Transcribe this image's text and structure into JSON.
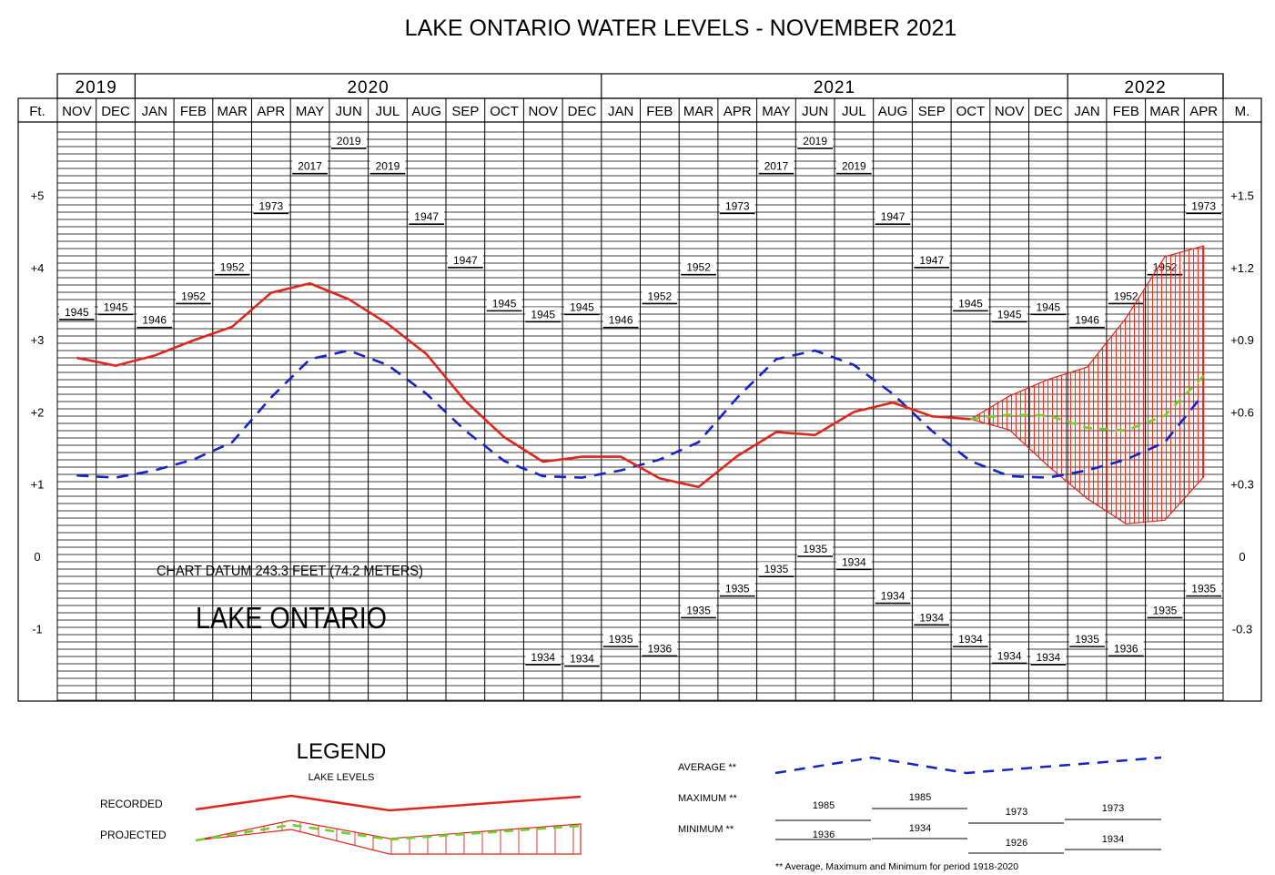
{
  "title": "LAKE ONTARIO WATER LEVELS - NOVEMBER 2021",
  "header": {
    "years": [
      {
        "label": "2019",
        "from": 0,
        "to": 2
      },
      {
        "label": "2020",
        "from": 2,
        "to": 14
      },
      {
        "label": "2021",
        "from": 14,
        "to": 26
      },
      {
        "label": "2022",
        "from": 26,
        "to": 30
      }
    ],
    "left_unit": "Ft.",
    "right_unit": "M."
  },
  "chart_data": {
    "type": "line",
    "title": "LAKE ONTARIO WATER LEVELS - NOVEMBER 2021",
    "categories": [
      "NOV",
      "DEC",
      "JAN",
      "FEB",
      "MAR",
      "APR",
      "MAY",
      "JUN",
      "JUL",
      "AUG",
      "SEP",
      "OCT",
      "NOV",
      "DEC",
      "JAN",
      "FEB",
      "MAR",
      "APR",
      "MAY",
      "JUN",
      "JUL",
      "AUG",
      "SEP",
      "OCT",
      "NOV",
      "DEC",
      "JAN",
      "FEB",
      "MAR",
      "APR"
    ],
    "ylim": [
      -2.0,
      6.0
    ],
    "left_ticks": [
      {
        "value": 5,
        "label": "+5"
      },
      {
        "value": 4,
        "label": "+4"
      },
      {
        "value": 3,
        "label": "+3"
      },
      {
        "value": 2,
        "label": "+2"
      },
      {
        "value": 1,
        "label": "+1"
      },
      {
        "value": 0,
        "label": "0"
      },
      {
        "value": -1,
        "label": "-1"
      }
    ],
    "right_ticks": [
      {
        "value": 5,
        "label": "+1.5"
      },
      {
        "value": 4,
        "label": "+1.2"
      },
      {
        "value": 3,
        "label": "+0.9"
      },
      {
        "value": 2,
        "label": "+0.6"
      },
      {
        "value": 1,
        "label": "+0.3"
      },
      {
        "value": 0,
        "label": "0"
      },
      {
        "value": -1,
        "label": "-0.3"
      }
    ],
    "grid": true,
    "series": [
      {
        "name": "RECORDED",
        "style": "solid",
        "color": "#e0261b",
        "points": [
          [
            0,
            2.75
          ],
          [
            1,
            2.64
          ],
          [
            2,
            2.78
          ],
          [
            3,
            2.99
          ],
          [
            4,
            3.18
          ],
          [
            5,
            3.65
          ],
          [
            6,
            3.78
          ],
          [
            7,
            3.56
          ],
          [
            8,
            3.22
          ],
          [
            9,
            2.8
          ],
          [
            10,
            2.15
          ],
          [
            11,
            1.65
          ],
          [
            12,
            1.31
          ],
          [
            13,
            1.38
          ],
          [
            14,
            1.38
          ],
          [
            15,
            1.08
          ],
          [
            16,
            0.96
          ],
          [
            17,
            1.39
          ],
          [
            18,
            1.72
          ],
          [
            19,
            1.68
          ],
          [
            20,
            2.0
          ],
          [
            21,
            2.13
          ],
          [
            22,
            1.94
          ],
          [
            23,
            1.9
          ]
        ]
      },
      {
        "name": "AVERAGE",
        "style": "dashed",
        "color": "#1323c9",
        "points": [
          [
            0,
            1.12
          ],
          [
            1,
            1.09
          ],
          [
            2,
            1.19
          ],
          [
            3,
            1.34
          ],
          [
            4,
            1.58
          ],
          [
            5,
            2.2
          ],
          [
            6,
            2.73
          ],
          [
            7,
            2.85
          ],
          [
            8,
            2.65
          ],
          [
            9,
            2.25
          ],
          [
            10,
            1.74
          ],
          [
            11,
            1.32
          ],
          [
            12,
            1.11
          ],
          [
            13,
            1.09
          ],
          [
            14,
            1.19
          ],
          [
            15,
            1.34
          ],
          [
            16,
            1.58
          ],
          [
            17,
            2.2
          ],
          [
            18,
            2.73
          ],
          [
            19,
            2.85
          ],
          [
            20,
            2.65
          ],
          [
            21,
            2.25
          ],
          [
            22,
            1.74
          ],
          [
            23,
            1.32
          ],
          [
            24,
            1.11
          ],
          [
            25,
            1.09
          ],
          [
            26,
            1.19
          ],
          [
            27,
            1.34
          ],
          [
            28,
            1.58
          ],
          [
            29,
            2.25
          ]
        ]
      },
      {
        "name": "PROJECTED",
        "style": "dashed",
        "color": "#6ed02a",
        "points": [
          [
            23,
            1.9
          ],
          [
            24,
            1.96
          ],
          [
            25,
            1.95
          ],
          [
            26,
            1.78
          ],
          [
            27,
            1.74
          ],
          [
            28,
            1.95
          ],
          [
            29,
            2.5
          ]
        ]
      }
    ],
    "projected_band": {
      "color": "#e0261b",
      "upper": [
        [
          23,
          1.9
        ],
        [
          24,
          2.22
        ],
        [
          25,
          2.45
        ],
        [
          26,
          2.62
        ],
        [
          27,
          3.3
        ],
        [
          28,
          4.15
        ],
        [
          29,
          4.3
        ]
      ],
      "lower": [
        [
          23,
          1.9
        ],
        [
          24,
          1.75
        ],
        [
          25,
          1.25
        ],
        [
          26,
          0.8
        ],
        [
          27,
          0.45
        ],
        [
          28,
          0.5
        ],
        [
          29,
          1.1
        ]
      ]
    },
    "monthly_maxima": [
      {
        "month": 0,
        "year": "1945",
        "value": 3.28
      },
      {
        "month": 1,
        "year": "1945",
        "value": 3.35
      },
      {
        "month": 2,
        "year": "1946",
        "value": 3.17
      },
      {
        "month": 3,
        "year": "1952",
        "value": 3.5
      },
      {
        "month": 4,
        "year": "1952",
        "value": 3.9
      },
      {
        "month": 5,
        "year": "1973",
        "value": 4.75
      },
      {
        "month": 6,
        "year": "2017",
        "value": 5.3
      },
      {
        "month": 7,
        "year": "2019",
        "value": 5.65
      },
      {
        "month": 8,
        "year": "2019",
        "value": 5.3
      },
      {
        "month": 9,
        "year": "1947",
        "value": 4.6
      },
      {
        "month": 10,
        "year": "1947",
        "value": 4.0
      },
      {
        "month": 11,
        "year": "1945",
        "value": 3.4
      },
      {
        "month": 12,
        "year": "1945",
        "value": 3.25
      },
      {
        "month": 13,
        "year": "1945",
        "value": 3.35
      },
      {
        "month": 14,
        "year": "1946",
        "value": 3.17
      },
      {
        "month": 15,
        "year": "1952",
        "value": 3.5
      },
      {
        "month": 16,
        "year": "1952",
        "value": 3.9
      },
      {
        "month": 17,
        "year": "1973",
        "value": 4.75
      },
      {
        "month": 18,
        "year": "2017",
        "value": 5.3
      },
      {
        "month": 19,
        "year": "2019",
        "value": 5.65
      },
      {
        "month": 20,
        "year": "2019",
        "value": 5.3
      },
      {
        "month": 21,
        "year": "1947",
        "value": 4.6
      },
      {
        "month": 22,
        "year": "1947",
        "value": 4.0
      },
      {
        "month": 23,
        "year": "1945",
        "value": 3.4
      },
      {
        "month": 24,
        "year": "1945",
        "value": 3.25
      },
      {
        "month": 25,
        "year": "1945",
        "value": 3.35
      },
      {
        "month": 26,
        "year": "1946",
        "value": 3.17
      },
      {
        "month": 27,
        "year": "1952",
        "value": 3.5
      },
      {
        "month": 28,
        "year": "1952",
        "value": 3.9
      },
      {
        "month": 29,
        "year": "1973",
        "value": 4.75
      }
    ],
    "monthly_minima": [
      {
        "month": 12,
        "year": "1934",
        "value": -1.5
      },
      {
        "month": 13,
        "year": "1934",
        "value": -1.52
      },
      {
        "month": 14,
        "year": "1935",
        "value": -1.25
      },
      {
        "month": 15,
        "year": "1936",
        "value": -1.38
      },
      {
        "month": 16,
        "year": "1935",
        "value": -0.85
      },
      {
        "month": 17,
        "year": "1935",
        "value": -0.55
      },
      {
        "month": 18,
        "year": "1935",
        "value": -0.28
      },
      {
        "month": 19,
        "year": "1935",
        "value": 0.0
      },
      {
        "month": 20,
        "year": "1934",
        "value": -0.18
      },
      {
        "month": 21,
        "year": "1934",
        "value": -0.65
      },
      {
        "month": 22,
        "year": "1934",
        "value": -0.95
      },
      {
        "month": 23,
        "year": "1934",
        "value": -1.25
      },
      {
        "month": 24,
        "year": "1934",
        "value": -1.48
      },
      {
        "month": 25,
        "year": "1934",
        "value": -1.5
      },
      {
        "month": 26,
        "year": "1935",
        "value": -1.25
      },
      {
        "month": 27,
        "year": "1936",
        "value": -1.38
      },
      {
        "month": 28,
        "year": "1935",
        "value": -0.85
      },
      {
        "month": 29,
        "year": "1935",
        "value": -0.55
      }
    ]
  },
  "annotations": {
    "datum": "CHART DATUM  243.3 FEET (74.2 METERS)",
    "lake": "LAKE ONTARIO"
  },
  "legend": {
    "title": "LEGEND",
    "subtitle": "LAKE LEVELS",
    "recorded": "RECORDED",
    "projected": "PROJECTED",
    "average": "AVERAGE **",
    "maximum": "MAXIMUM **",
    "minimum": "MINIMUM **",
    "max_samples": [
      "1985",
      "1985",
      "1973",
      "1973"
    ],
    "min_samples": [
      "1936",
      "1934",
      "1926",
      "1934"
    ],
    "footnote": "** Average, Maximum and Minimum for period 1918-2020"
  },
  "colors": {
    "recorded": "#e0261b",
    "average": "#1323c9",
    "projected": "#6ed02a",
    "grid": "#000000"
  }
}
